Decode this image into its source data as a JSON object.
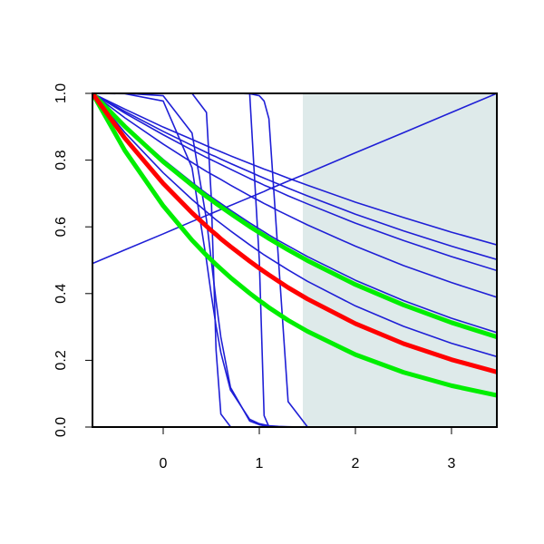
{
  "chart_data": {
    "type": "line",
    "x": [
      -0.736,
      -0.4,
      0,
      0.3,
      0.45,
      0.5,
      0.55,
      0.6,
      0.7,
      0.9,
      1.0,
      1.05,
      1.1,
      1.2,
      1.3,
      1.5,
      2.0,
      2.5,
      3.0,
      3.472
    ],
    "xlim": [
      -0.736,
      3.472
    ],
    "ylim": [
      0,
      1
    ],
    "xticks": [
      0,
      1,
      2,
      3
    ],
    "yticks": [
      {
        "value": 0,
        "label": "0.0"
      },
      {
        "value": 0.2,
        "label": "0.2"
      },
      {
        "value": 0.4,
        "label": "0.4"
      },
      {
        "value": 0.6,
        "label": "0.6"
      },
      {
        "value": 0.8,
        "label": "0.8"
      },
      {
        "value": 1,
        "label": "1.0"
      }
    ],
    "shade_xlim": [
      1.453,
      3.472
    ],
    "shade_color": "#deeaea",
    "series": [
      {
        "color": "#1f1fd6",
        "width": 1.6,
        "values": [
          1,
          0.953,
          0.899,
          0.862,
          0.843,
          0.837,
          0.831,
          0.825,
          0.813,
          0.79,
          0.779,
          0.773,
          0.768,
          0.757,
          0.746,
          0.725,
          0.674,
          0.628,
          0.584,
          0.546
        ]
      },
      {
        "color": "#1f1fd6",
        "width": 1.6,
        "values": [
          1,
          0.946,
          0.886,
          0.844,
          0.823,
          0.816,
          0.81,
          0.803,
          0.79,
          0.765,
          0.752,
          0.746,
          0.74,
          0.728,
          0.716,
          0.693,
          0.638,
          0.588,
          0.542,
          0.502
        ]
      },
      {
        "color": "#1f1fd6",
        "width": 1.6,
        "values": [
          1,
          0.941,
          0.876,
          0.83,
          0.808,
          0.801,
          0.794,
          0.787,
          0.773,
          0.745,
          0.732,
          0.725,
          0.719,
          0.706,
          0.693,
          0.669,
          0.611,
          0.559,
          0.511,
          0.469
        ]
      },
      {
        "color": "#1f1fd6",
        "width": 1.6,
        "values": [
          1,
          0.927,
          0.848,
          0.793,
          0.766,
          0.758,
          0.75,
          0.742,
          0.725,
          0.693,
          0.678,
          0.67,
          0.663,
          0.648,
          0.634,
          0.606,
          0.542,
          0.484,
          0.433,
          0.389
        ]
      },
      {
        "color": "#1f1fd6",
        "width": 1.6,
        "values": [
          1,
          0.904,
          0.802,
          0.733,
          0.7,
          0.69,
          0.68,
          0.67,
          0.65,
          0.612,
          0.594,
          0.585,
          0.576,
          0.559,
          0.543,
          0.511,
          0.44,
          0.379,
          0.326,
          0.283
        ]
      },
      {
        "color": "#1f1fd6",
        "width": 1.6,
        "values": [
          1,
          0.883,
          0.762,
          0.682,
          0.645,
          0.633,
          0.621,
          0.61,
          0.588,
          0.546,
          0.526,
          0.516,
          0.507,
          0.489,
          0.471,
          0.437,
          0.363,
          0.302,
          0.251,
          0.211
        ]
      },
      {
        "color": "#1f1fd6",
        "width": 1.6,
        "values": [
          0.49,
          0.531,
          0.579,
          0.616,
          0.634,
          0.64,
          0.646,
          0.652,
          0.664,
          0.688,
          0.7,
          0.706,
          0.713,
          0.725,
          0.737,
          0.761,
          0.822,
          0.882,
          0.943,
          1.0
        ]
      },
      {
        "color": "#1f1fd6",
        "width": 1.6,
        "values": [
          1,
          1,
          1,
          1,
          0.943,
          0.69,
          0.231,
          0.039,
          0.001,
          0,
          0,
          0,
          0,
          0,
          0,
          0,
          0,
          0,
          0,
          0
        ]
      },
      {
        "color": "#1f1fd6",
        "width": 1.6,
        "values": [
          1,
          1,
          1,
          1,
          1,
          1,
          1,
          1,
          1,
          0.999,
          0.5,
          0.034,
          0.001,
          0,
          0,
          0,
          0,
          0,
          0,
          0
        ]
      },
      {
        "color": "#1f1fd6",
        "width": 1.6,
        "values": [
          1,
          1,
          1,
          1,
          1,
          1,
          1,
          1,
          1,
          0.999,
          0.993,
          0.977,
          0.924,
          0.5,
          0.076,
          0.001,
          0,
          0,
          0,
          0
        ]
      },
      {
        "color": "#1f1fd6",
        "width": 1.6,
        "values": [
          1,
          1,
          0.993,
          0.881,
          0.622,
          0.5,
          0.378,
          0.269,
          0.119,
          0.018,
          0.007,
          0.004,
          0.002,
          0.001,
          0,
          0,
          0,
          0,
          0,
          0
        ]
      },
      {
        "color": "#1f1fd6",
        "width": 1.6,
        "values": [
          1,
          0.999,
          0.977,
          0.777,
          0.5,
          0.397,
          0.303,
          0.223,
          0.111,
          0.023,
          0.01,
          0.007,
          0.004,
          0.002,
          0.001,
          0,
          0,
          0,
          0,
          0
        ]
      },
      {
        "color": "#00ee00",
        "width": 5,
        "values": [
          1,
          0.901,
          0.795,
          0.725,
          0.691,
          0.681,
          0.67,
          0.66,
          0.64,
          0.601,
          0.583,
          0.574,
          0.565,
          0.548,
          0.531,
          0.499,
          0.427,
          0.366,
          0.313,
          0.27
        ]
      },
      {
        "color": "#00ee00",
        "width": 5,
        "values": [
          1,
          0.829,
          0.663,
          0.56,
          0.515,
          0.501,
          0.487,
          0.474,
          0.448,
          0.401,
          0.379,
          0.369,
          0.358,
          0.339,
          0.32,
          0.287,
          0.217,
          0.164,
          0.124,
          0.095
        ]
      },
      {
        "color": "#ff0000",
        "width": 5,
        "values": [
          1,
          0.866,
          0.73,
          0.642,
          0.602,
          0.589,
          0.577,
          0.564,
          0.541,
          0.497,
          0.476,
          0.466,
          0.456,
          0.437,
          0.418,
          0.384,
          0.31,
          0.25,
          0.202,
          0.165
        ]
      }
    ]
  }
}
